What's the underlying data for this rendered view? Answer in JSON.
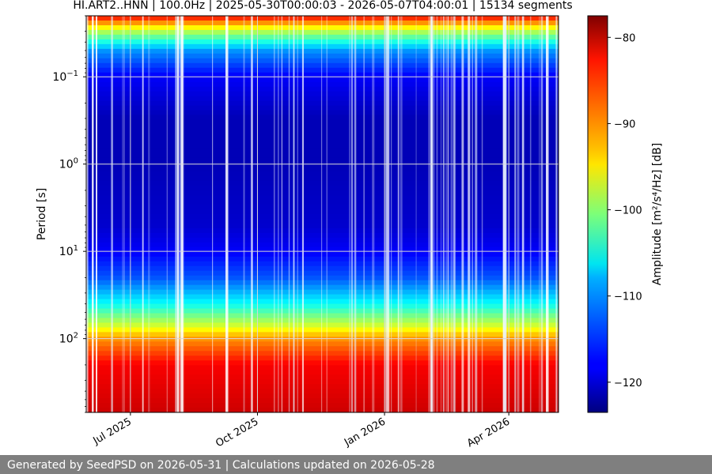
{
  "chart_data": {
    "type": "heatmap",
    "title": "HI.ART2..HNN | 100.0Hz | 2025-05-30T00:00:03 - 2026-05-07T04:00:01 | 15134 segments",
    "ylabel": "Period [s]",
    "xlabel": "",
    "x_range": [
      "2025-05-30",
      "2026-05-07"
    ],
    "y_scale": "log",
    "y_inverted": true,
    "y_range": [
      0.02,
      700
    ],
    "x_ticks": [
      {
        "date": "2025-07-01",
        "label": "Jul 2025"
      },
      {
        "date": "2025-10-01",
        "label": "Oct 2025"
      },
      {
        "date": "2026-01-01",
        "label": "Jan 2026"
      },
      {
        "date": "2026-04-01",
        "label": "Apr 2026"
      }
    ],
    "y_ticks": [
      {
        "value": 0.1,
        "base": "10",
        "exp": "−1"
      },
      {
        "value": 1,
        "base": "10",
        "exp": "0"
      },
      {
        "value": 10,
        "base": "10",
        "exp": "1"
      },
      {
        "value": 100,
        "base": "10",
        "exp": "2"
      }
    ],
    "grid": true,
    "colorbar": {
      "label": "Amplitude [m²/s⁴/Hz] [dB]",
      "range": [
        -123.5,
        -77.5
      ],
      "ticks": [
        {
          "value": -80,
          "label": "−80"
        },
        {
          "value": -90,
          "label": "−90"
        },
        {
          "value": -100,
          "label": "−100"
        },
        {
          "value": -110,
          "label": "−110"
        },
        {
          "value": -120,
          "label": "−120"
        }
      ],
      "colormap": "jet"
    },
    "amplitude_profile": [
      {
        "period": 0.02,
        "db": -83
      },
      {
        "period": 0.03,
        "db": -98
      },
      {
        "period": 0.05,
        "db": -111
      },
      {
        "period": 0.1,
        "db": -118
      },
      {
        "period": 0.3,
        "db": -121
      },
      {
        "period": 1,
        "db": -121
      },
      {
        "period": 5,
        "db": -120
      },
      {
        "period": 10,
        "db": -118
      },
      {
        "period": 20,
        "db": -114
      },
      {
        "period": 40,
        "db": -106
      },
      {
        "period": 70,
        "db": -97
      },
      {
        "period": 100,
        "db": -90
      },
      {
        "period": 200,
        "db": -83
      },
      {
        "period": 700,
        "db": -81
      }
    ]
  },
  "footer": {
    "text": "Generated by SeedPSD on 2026-05-31 | Calculations updated on 2026-05-28"
  }
}
